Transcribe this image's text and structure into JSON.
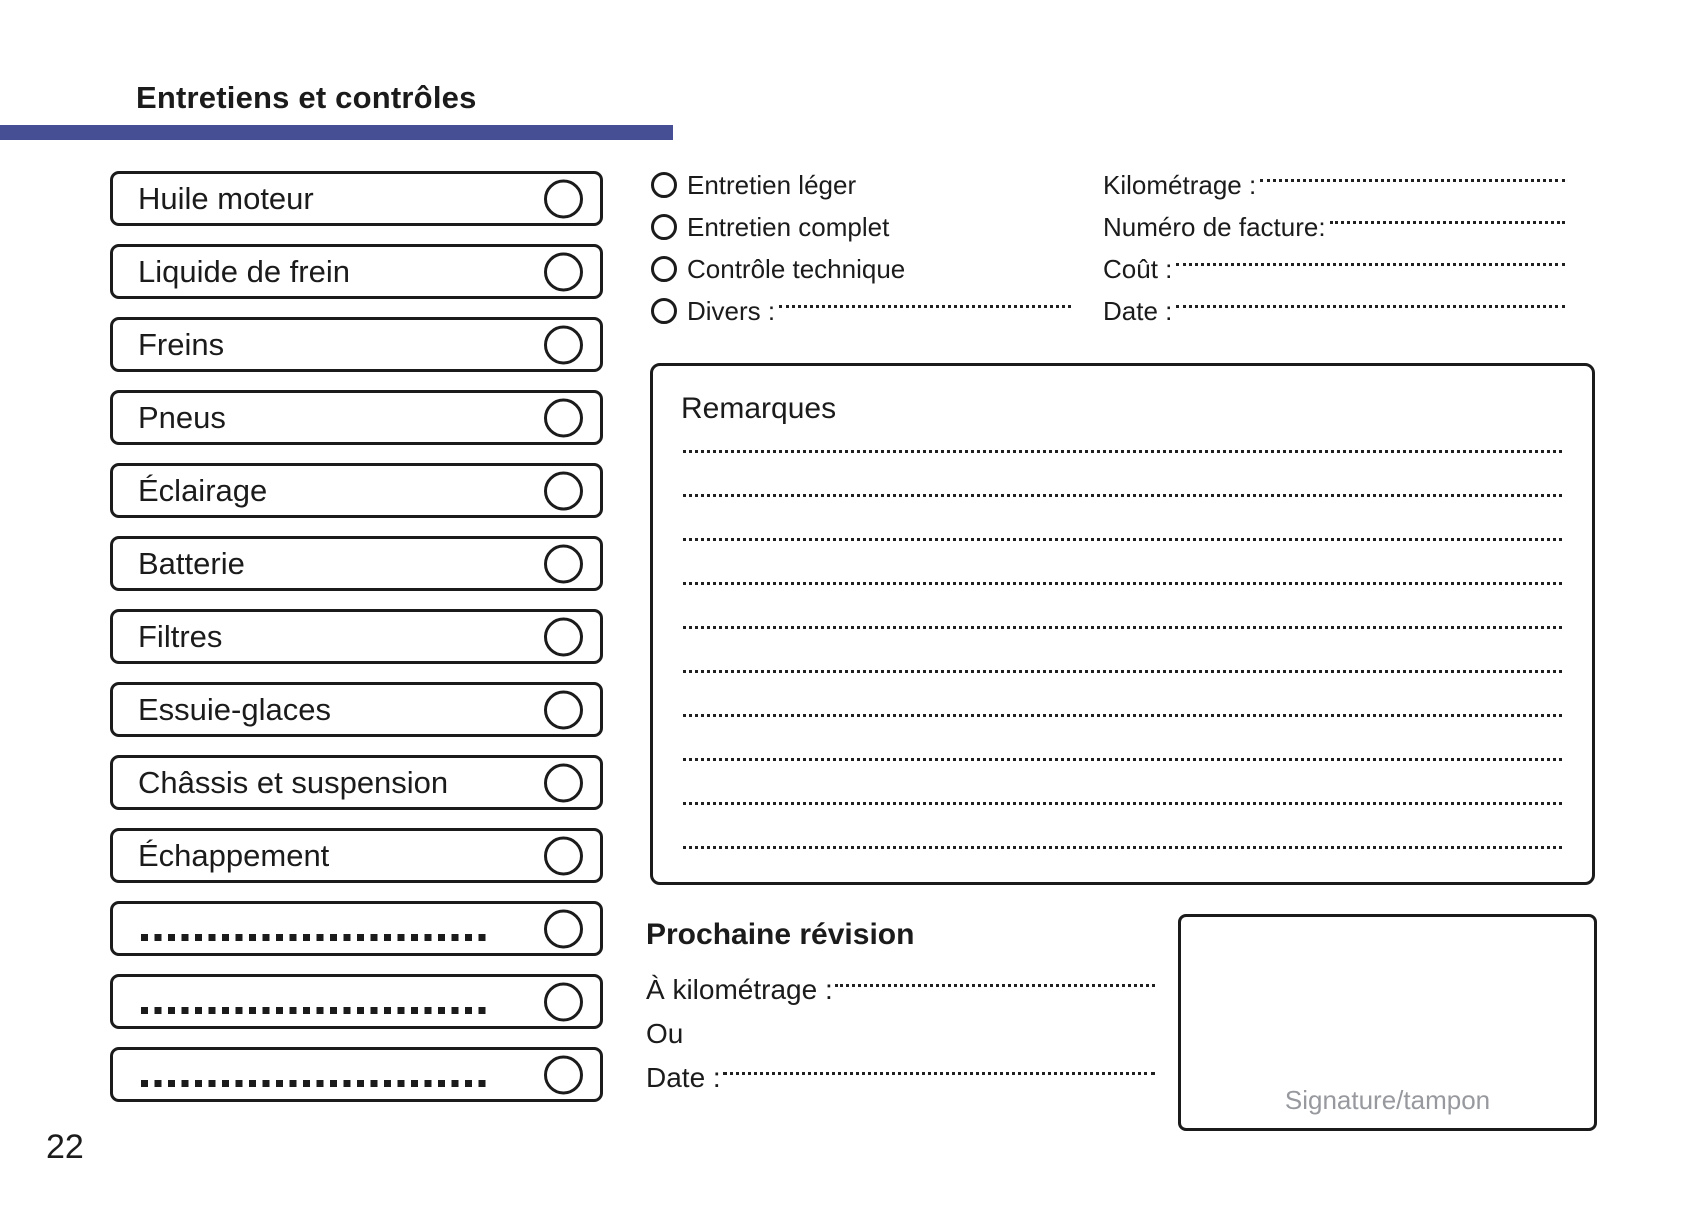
{
  "page": {
    "title": "Entretiens et contrôles",
    "page_number": "22",
    "accent_color": "#474f94"
  },
  "checklist": {
    "items": [
      "Huile moteur",
      "Liquide de frein",
      "Freins",
      "Pneus",
      "Éclairage",
      "Batterie",
      "Filtres",
      "Essuie-glaces",
      "Châssis et suspension",
      "Échappement"
    ],
    "blank_rows": 3
  },
  "service_type": {
    "options": [
      "Entretien léger",
      "Entretien complet",
      "Contrôle technique"
    ],
    "divers_label": "Divers :"
  },
  "invoice": {
    "fields": [
      "Kilométrage :",
      "Numéro de facture:",
      "Coût :",
      "Date :"
    ]
  },
  "remarks": {
    "title": "Remarques",
    "line_count": 10
  },
  "next_service": {
    "title": "Prochaine révision",
    "km_label": "À kilométrage :",
    "or_label": "Ou",
    "date_label": "Date :"
  },
  "signature": {
    "label": "Signature/tampon"
  }
}
